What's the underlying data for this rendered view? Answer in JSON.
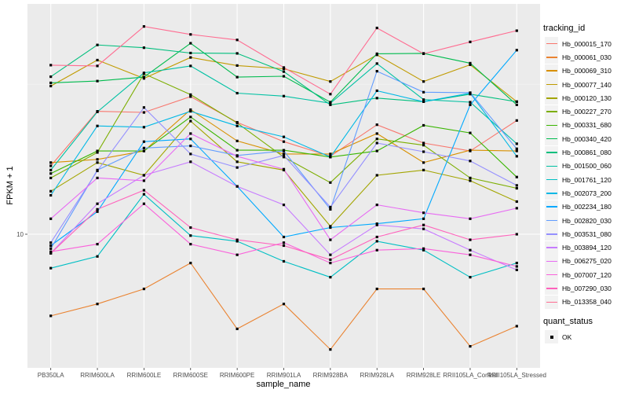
{
  "chart_data": {
    "type": "line",
    "title": "",
    "xlabel": "sample_name",
    "ylabel": "FPKM + 1",
    "yscale": "log10",
    "y_ticks": [
      10
    ],
    "y_tick_labels": [
      "10"
    ],
    "ylim": [
      4,
      50
    ],
    "grid": true,
    "legend_position": "right",
    "categories": [
      "PB350LA",
      "RRIM600LA",
      "RRIM600LE",
      "RRIM600SE",
      "RRIM600PE",
      "RRIM901LA",
      "RRIM928BA",
      "RRIM928LA",
      "RRIM928LE",
      "RRII105LA_Control",
      "RRII105LA_Stressed"
    ],
    "legend": {
      "title": "tracking_id",
      "quant_title": "quant_status",
      "quant_label": "OK"
    },
    "series": [
      {
        "name": "Hb_000015_170",
        "color": "#F8766D",
        "values": [
          16.5,
          24.6,
          24.4,
          27.4,
          22.7,
          19.7,
          17.7,
          22.3,
          19.5,
          18.4,
          23.0
        ]
      },
      {
        "name": "Hb_000061_030",
        "color": "#EA8331",
        "values": [
          5.5,
          6.0,
          6.7,
          8.1,
          5.0,
          6.0,
          4.3,
          6.7,
          6.7,
          4.4,
          5.1
        ]
      },
      {
        "name": "Hb_000069_310",
        "color": "#D89000",
        "values": [
          16.9,
          17.3,
          18.4,
          24.9,
          19.8,
          18.0,
          18.0,
          20.9,
          16.9,
          18.5,
          18.4
        ]
      },
      {
        "name": "Hb_000077_140",
        "color": "#C09B00",
        "values": [
          29.6,
          35.8,
          31.3,
          36.5,
          34.4,
          33.6,
          30.6,
          37.2,
          30.6,
          34.6,
          26.4
        ]
      },
      {
        "name": "Hb_000120_130",
        "color": "#A3A500",
        "values": [
          13.7,
          16.9,
          15.4,
          22.9,
          17.0,
          16.0,
          10.6,
          15.4,
          16.0,
          14.8,
          12.7
        ]
      },
      {
        "name": "Hb_000227_270",
        "color": "#7CAE00",
        "values": [
          15.1,
          18.2,
          32.4,
          27.8,
          22.6,
          17.6,
          14.6,
          20.1,
          19.2,
          15.1,
          14.0
        ]
      },
      {
        "name": "Hb_000331_680",
        "color": "#39B600",
        "values": [
          15.6,
          18.4,
          18.4,
          23.6,
          18.5,
          18.5,
          17.6,
          18.4,
          22.2,
          21.0,
          15.2
        ]
      },
      {
        "name": "Hb_000340_420",
        "color": "#00BB4E",
        "values": [
          30.3,
          30.7,
          31.6,
          40.5,
          31.6,
          31.8,
          26.3,
          37.5,
          37.6,
          35.0,
          25.8
        ]
      },
      {
        "name": "Hb_000861_080",
        "color": "#00BF7D",
        "values": [
          31.7,
          40.0,
          39.2,
          37.7,
          37.6,
          32.9,
          25.8,
          27.1,
          26.4,
          27.9,
          26.4
        ]
      },
      {
        "name": "Hb_001500_060",
        "color": "#00C1A3",
        "values": [
          16.0,
          24.5,
          32.6,
          34.3,
          28.1,
          27.5,
          26.1,
          34.9,
          26.8,
          26.3,
          19.4
        ]
      },
      {
        "name": "Hb_001761_120",
        "color": "#00BFC4",
        "values": [
          7.8,
          8.5,
          13.4,
          9.9,
          9.5,
          8.2,
          7.3,
          9.5,
          8.9,
          7.3,
          8.1
        ]
      },
      {
        "name": "Hb_002073_200",
        "color": "#00B8E5",
        "values": [
          13.3,
          22.1,
          21.9,
          24.6,
          22.1,
          20.4,
          17.6,
          28.6,
          26.4,
          28.1,
          17.7
        ]
      },
      {
        "name": "Hb_002234_180",
        "color": "#00A9FF",
        "values": [
          9.2,
          11.8,
          19.7,
          20.1,
          14.2,
          9.8,
          10.5,
          10.8,
          11.2,
          25.8,
          38.5
        ]
      },
      {
        "name": "Hb_002820_030",
        "color": "#619CFF",
        "values": [
          9.0,
          16.0,
          18.8,
          19.1,
          17.8,
          18.4,
          12.0,
          33.0,
          28.3,
          28.2,
          18.7
        ]
      },
      {
        "name": "Hb_003531_080",
        "color": "#9590FF",
        "values": [
          9.4,
          15.9,
          25.3,
          18.0,
          16.3,
          17.8,
          12.2,
          19.5,
          18.3,
          17.1,
          14.3
        ]
      },
      {
        "name": "Hb_003894_120",
        "color": "#C77CFF",
        "values": [
          8.7,
          12.5,
          15.4,
          17.0,
          14.2,
          12.4,
          8.6,
          10.7,
          10.4,
          8.9,
          7.7
        ]
      },
      {
        "name": "Hb_006275_020",
        "color": "#E76BF3",
        "values": [
          11.2,
          15.1,
          14.8,
          20.9,
          17.7,
          16.1,
          9.6,
          12.4,
          11.7,
          11.2,
          12.1
        ]
      },
      {
        "name": "Hb_007007_120",
        "color": "#FA62DB",
        "values": [
          8.8,
          9.3,
          12.5,
          9.3,
          8.6,
          9.4,
          8.1,
          8.9,
          9.0,
          8.6,
          7.9
        ]
      },
      {
        "name": "Hb_007290_030",
        "color": "#FF62BC",
        "values": [
          8.7,
          12.0,
          13.8,
          10.5,
          9.6,
          9.2,
          8.3,
          9.8,
          10.7,
          9.6,
          10.0
        ]
      },
      {
        "name": "Hb_013358_040",
        "color": "#FF6C91",
        "values": [
          34.5,
          34.3,
          45.8,
          43.2,
          41.5,
          33.9,
          27.9,
          45.3,
          37.5,
          40.9,
          44.4
        ]
      }
    ]
  }
}
